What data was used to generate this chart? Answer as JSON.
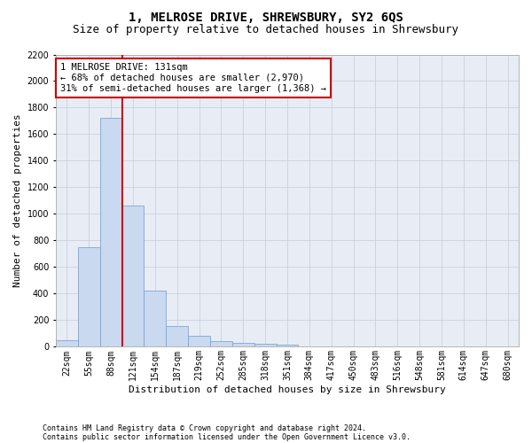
{
  "title": "1, MELROSE DRIVE, SHREWSBURY, SY2 6QS",
  "subtitle": "Size of property relative to detached houses in Shrewsbury",
  "xlabel": "Distribution of detached houses by size in Shrewsbury",
  "ylabel": "Number of detached properties",
  "footnote1": "Contains HM Land Registry data © Crown copyright and database right 2024.",
  "footnote2": "Contains public sector information licensed under the Open Government Licence v3.0.",
  "bar_labels": [
    "22sqm",
    "55sqm",
    "88sqm",
    "121sqm",
    "154sqm",
    "187sqm",
    "219sqm",
    "252sqm",
    "285sqm",
    "318sqm",
    "351sqm",
    "384sqm",
    "417sqm",
    "450sqm",
    "483sqm",
    "516sqm",
    "548sqm",
    "581sqm",
    "614sqm",
    "647sqm",
    "680sqm"
  ],
  "bar_values": [
    50,
    750,
    1720,
    1060,
    420,
    155,
    80,
    45,
    30,
    20,
    15,
    5,
    3,
    2,
    1,
    0,
    0,
    0,
    0,
    0,
    0
  ],
  "bar_color": "#c9d9f0",
  "bar_edgecolor": "#7ea6d4",
  "vline_color": "#cc0000",
  "vline_position": 2.5,
  "ylim": [
    0,
    2200
  ],
  "yticks": [
    0,
    200,
    400,
    600,
    800,
    1000,
    1200,
    1400,
    1600,
    1800,
    2000,
    2200
  ],
  "annotation_text": "1 MELROSE DRIVE: 131sqm\n← 68% of detached houses are smaller (2,970)\n31% of semi-detached houses are larger (1,368) →",
  "annotation_box_color": "#ffffff",
  "annotation_box_edgecolor": "#cc0000",
  "background_color": "#ffffff",
  "plot_bg_color": "#e8edf5",
  "grid_color": "#c8d0e0",
  "title_fontsize": 10,
  "subtitle_fontsize": 9,
  "ylabel_fontsize": 8,
  "xlabel_fontsize": 8,
  "tick_fontsize": 7,
  "annotation_fontsize": 7.5
}
